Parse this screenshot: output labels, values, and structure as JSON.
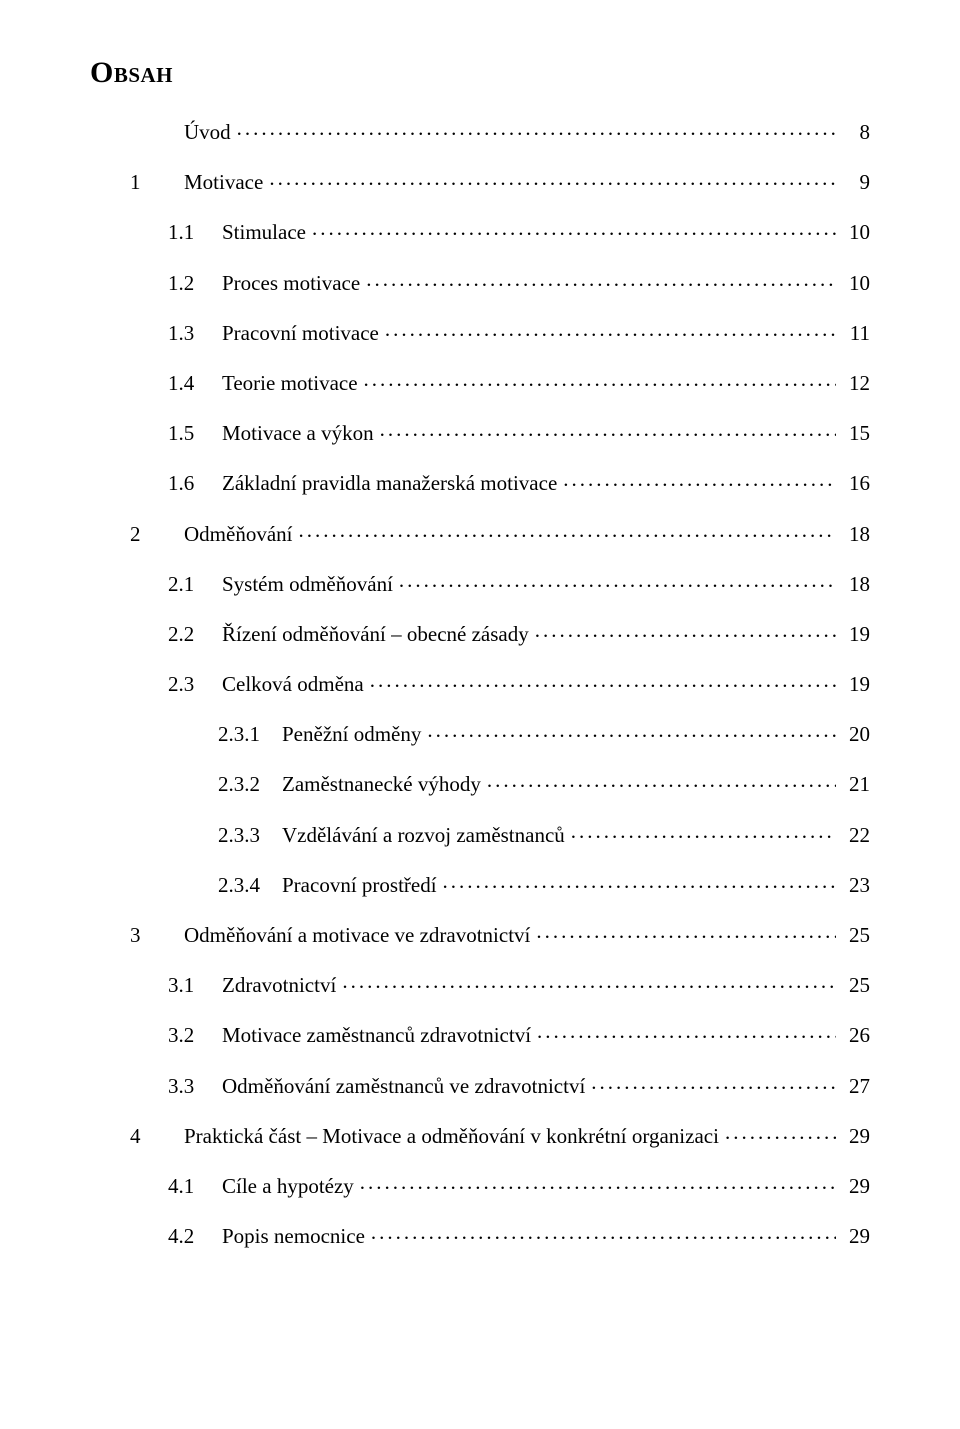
{
  "heading": "Obsah",
  "toc": [
    {
      "level": 1,
      "num": "",
      "label": "Úvod",
      "page": "8"
    },
    {
      "level": 1,
      "num": "1",
      "label": "Motivace",
      "page": "9"
    },
    {
      "level": 2,
      "num": "1.1",
      "label": "Stimulace",
      "page": "10"
    },
    {
      "level": 2,
      "num": "1.2",
      "label": "Proces motivace",
      "page": "10"
    },
    {
      "level": 2,
      "num": "1.3",
      "label": "Pracovní motivace",
      "page": "11"
    },
    {
      "level": 2,
      "num": "1.4",
      "label": "Teorie motivace",
      "page": "12"
    },
    {
      "level": 2,
      "num": "1.5",
      "label": "Motivace a výkon",
      "page": "15"
    },
    {
      "level": 2,
      "num": "1.6",
      "label": "Základní pravidla manažerská motivace",
      "page": "16"
    },
    {
      "level": 1,
      "num": "2",
      "label": "Odměňování",
      "page": "18"
    },
    {
      "level": 2,
      "num": "2.1",
      "label": "Systém odměňování",
      "page": "18"
    },
    {
      "level": 2,
      "num": "2.2",
      "label": "Řízení odměňování – obecné zásady",
      "page": "19"
    },
    {
      "level": 2,
      "num": "2.3",
      "label": "Celková odměna",
      "page": "19"
    },
    {
      "level": 3,
      "num": "2.3.1",
      "label": "Peněžní odměny",
      "page": "20"
    },
    {
      "level": 3,
      "num": "2.3.2",
      "label": "Zaměstnanecké výhody",
      "page": "21"
    },
    {
      "level": 3,
      "num": "2.3.3",
      "label": "Vzdělávání a rozvoj zaměstnanců",
      "page": "22"
    },
    {
      "level": 3,
      "num": "2.3.4",
      "label": "Pracovní prostředí",
      "page": "23"
    },
    {
      "level": 1,
      "num": "3",
      "label": "Odměňování a motivace ve zdravotnictví",
      "page": "25"
    },
    {
      "level": 2,
      "num": "3.1",
      "label": "Zdravotnictví",
      "page": "25"
    },
    {
      "level": 2,
      "num": "3.2",
      "label": "Motivace zaměstnanců zdravotnictví",
      "page": "26"
    },
    {
      "level": 2,
      "num": "3.3",
      "label": "Odměňování zaměstnanců ve zdravotnictví",
      "page": "27"
    },
    {
      "level": 1,
      "num": "4",
      "label": "Praktická část – Motivace a odměňování v konkrétní organizaci",
      "page": "29"
    },
    {
      "level": 2,
      "num": "4.1",
      "label": "Cíle a hypotézy",
      "page": "29"
    },
    {
      "level": 2,
      "num": "4.2",
      "label": "Popis nemocnice",
      "page": "29"
    }
  ]
}
